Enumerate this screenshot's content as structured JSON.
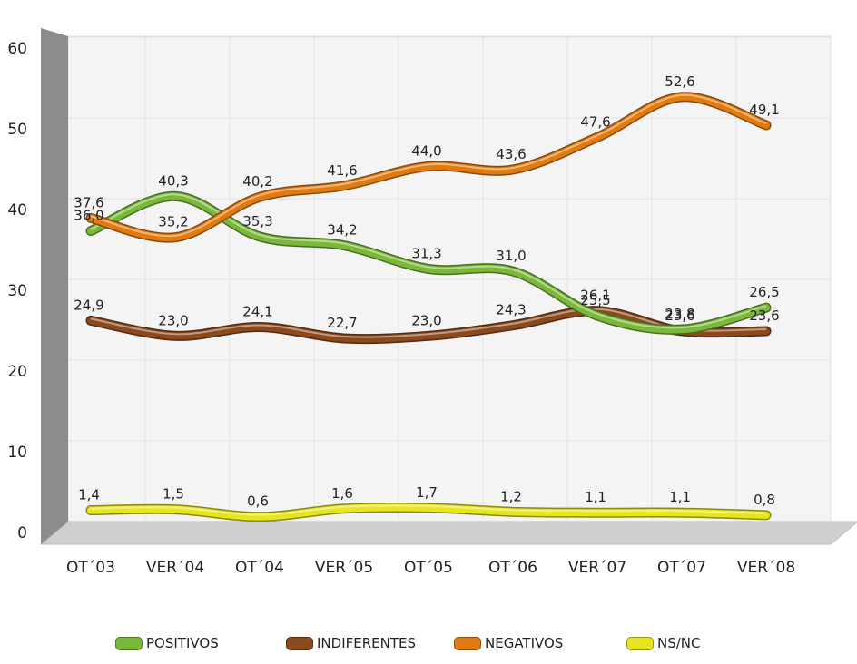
{
  "chart_data": {
    "type": "line",
    "title": "",
    "xlabel": "",
    "ylabel": "",
    "categories": [
      "OT´03",
      "VER´04",
      "OT´04",
      "VER´05",
      "OT´05",
      "OT´06",
      "VER´07",
      "OT´07",
      "VER´08"
    ],
    "ylim": [
      0,
      60
    ],
    "yticks": [
      "0",
      "10",
      "20",
      "30",
      "40",
      "50",
      "60"
    ],
    "grid": true,
    "legend_position": "bottom",
    "series": [
      {
        "name": "POSITIVOS",
        "color": "#7ab83a",
        "values": [
          36.0,
          40.3,
          35.3,
          34.2,
          31.3,
          31.0,
          25.5,
          23.8,
          26.5
        ],
        "labels": [
          "36,0",
          "40,3",
          "35,3",
          "34,2",
          "31,3",
          "31,0",
          "25,5",
          "23,8",
          "26,5"
        ]
      },
      {
        "name": "INDIFERENTES",
        "color": "#8a4a1e",
        "values": [
          24.9,
          23.0,
          24.1,
          22.7,
          23.0,
          24.3,
          26.1,
          23.6,
          23.6
        ],
        "labels": [
          "24,9",
          "23,0",
          "24,1",
          "22,7",
          "23,0",
          "24,3",
          "26,1",
          "23,6",
          "23,6"
        ]
      },
      {
        "name": "NEGATIVOS",
        "color": "#e07b10",
        "values": [
          37.6,
          35.2,
          40.2,
          41.6,
          44.0,
          43.6,
          47.6,
          52.6,
          49.1
        ],
        "labels": [
          "37,6",
          "35,2",
          "40,2",
          "41,6",
          "44,0",
          "43,6",
          "47,6",
          "52,6",
          "49,1"
        ]
      },
      {
        "name": "NS/NC",
        "color": "#e6e61e",
        "values": [
          1.4,
          1.5,
          0.6,
          1.6,
          1.7,
          1.2,
          1.1,
          1.1,
          0.8
        ],
        "labels": [
          "1,4",
          "1,5",
          "0,6",
          "1,6",
          "1,7",
          "1,2",
          "1,1",
          "1,1",
          "0,8"
        ]
      }
    ]
  }
}
